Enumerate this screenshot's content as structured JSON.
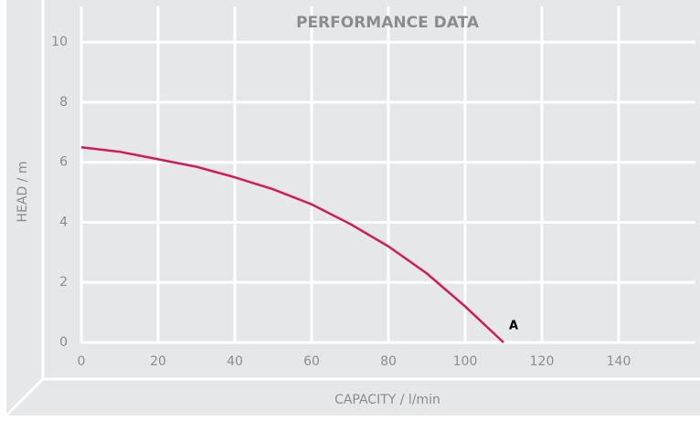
{
  "chart_data": {
    "type": "line",
    "title": "PERFORMANCE DATA",
    "x_label": "CAPACITY / l/min",
    "y_label": "HEAD / m",
    "x": [
      0,
      10,
      20,
      30,
      40,
      50,
      60,
      70,
      80,
      90,
      100,
      105,
      110
    ],
    "series": [
      {
        "name": "A",
        "color": "#d6185a",
        "values": [
          6.5,
          6.35,
          6.1,
          5.85,
          5.5,
          5.1,
          4.6,
          3.95,
          3.2,
          2.3,
          1.2,
          0.6,
          0
        ]
      }
    ],
    "xlim": [
      0,
      160
    ],
    "ylim": [
      0,
      11.2
    ],
    "xticks": [
      0,
      20,
      40,
      60,
      80,
      100,
      120,
      140
    ],
    "yticks": [
      0,
      2,
      4,
      6,
      8,
      10
    ],
    "grid": true
  }
}
